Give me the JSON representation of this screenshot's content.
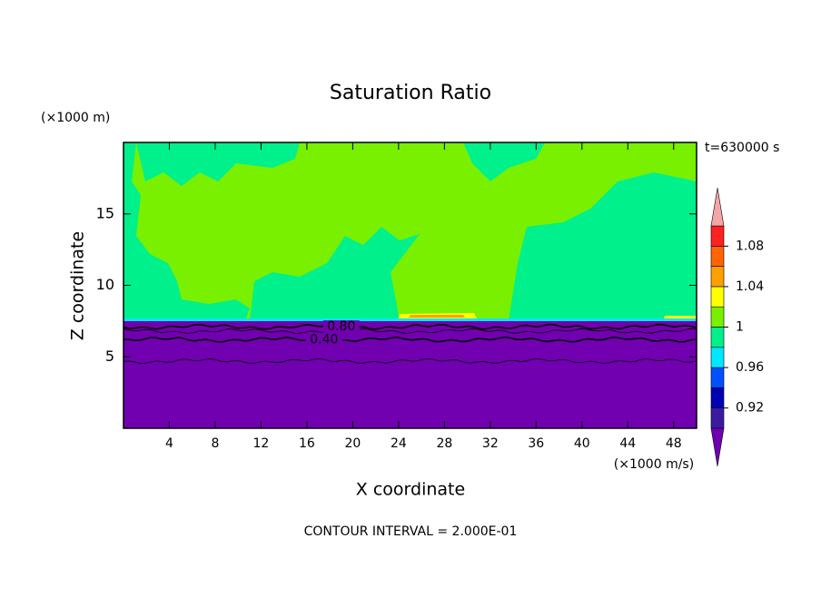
{
  "chart_data": {
    "type": "contour",
    "title": "Saturation Ratio",
    "y_unit": "(×1000 m)",
    "x_unit": "(×1000 m/s)",
    "time_label": "t=630000 s",
    "xlabel": "X coordinate",
    "ylabel": "Z coordinate",
    "footer": "CONTOUR INTERVAL = 2.000E-01",
    "xlim": [
      0,
      50
    ],
    "ylim": [
      0,
      20
    ],
    "xticks": [
      4,
      8,
      12,
      16,
      20,
      24,
      28,
      32,
      36,
      40,
      44,
      48
    ],
    "yticks": [
      5,
      10,
      15
    ],
    "colorbar": {
      "levels": [
        0.9,
        0.92,
        0.94,
        0.96,
        0.98,
        1,
        1.02,
        1.04,
        1.06,
        1.08,
        1.1
      ],
      "colors": [
        "#3c1aa0",
        "#0000b4",
        "#0050ff",
        "#00e8ff",
        "#00f08c",
        "#78f000",
        "#ffff00",
        "#ffa000",
        "#ff6400",
        "#ff2020"
      ],
      "under_color": "#7000b0",
      "over_color": "#f4a6a6",
      "ticks": [
        0.92,
        0.96,
        1,
        1.04,
        1.08
      ]
    },
    "contours": [
      {
        "level": 0.2,
        "z": 4.7
      },
      {
        "level": {
          "value": 0.4,
          "label": "0.40"
        },
        "z": 6.2
      },
      {
        "level": 0.6,
        "z": 6.8
      },
      {
        "level": {
          "value": 0.8,
          "label": "0.80"
        },
        "z": 7.1
      }
    ]
  }
}
